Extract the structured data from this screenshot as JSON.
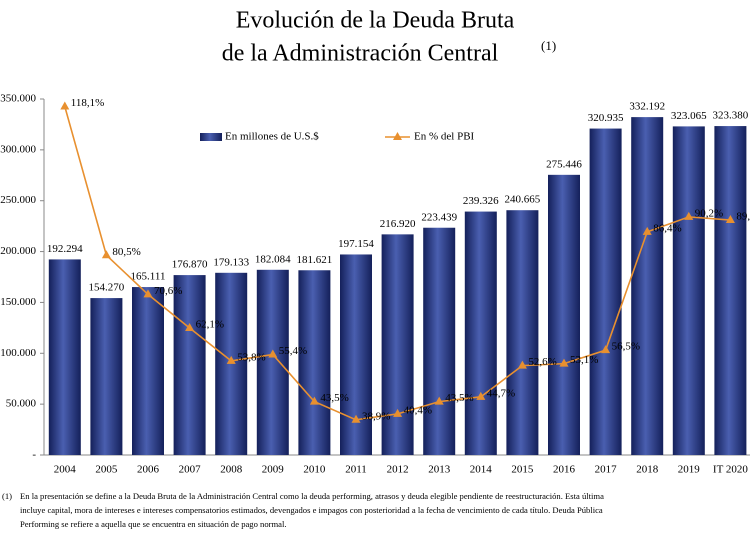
{
  "chart_data": {
    "type": "bar",
    "title_line1": "Evolución de la Deuda Bruta",
    "title_line2": "de la Administración Central",
    "title_note": "(1)",
    "categories": [
      "2004",
      "2005",
      "2006",
      "2007",
      "2008",
      "2009",
      "2010",
      "2011",
      "2012",
      "2013",
      "2014",
      "2015",
      "2016",
      "2017",
      "2018",
      "2019",
      "IT 2020"
    ],
    "series": [
      {
        "name": "En millones de U.S.$",
        "type": "bar",
        "color": "#1f2f78",
        "values": [
          192294,
          154270,
          165111,
          176870,
          179133,
          182084,
          181621,
          197154,
          216920,
          223439,
          239326,
          240665,
          275446,
          320935,
          332192,
          323065,
          323380
        ],
        "value_labels": [
          "192.294",
          "154.270",
          "165.111",
          "176.870",
          "179.133",
          "182.084",
          "181.621",
          "197.154",
          "216.920",
          "223.439",
          "239.326",
          "240.665",
          "275.446",
          "320.935",
          "332.192",
          "323.065",
          "323.380"
        ]
      },
      {
        "name": "En % del PBI",
        "type": "line",
        "axis": "y2",
        "color": "#e8902f",
        "values": [
          118.1,
          80.5,
          70.6,
          62.1,
          53.8,
          55.4,
          43.5,
          38.9,
          40.4,
          43.5,
          44.7,
          52.6,
          53.1,
          56.5,
          86.4,
          90.2,
          89.4
        ],
        "value_labels": [
          "118,1%",
          "80,5%",
          "70,6%",
          "62,1%",
          "53,8%",
          "55,4%",
          "43,5%",
          "38,9%",
          "40,4%",
          "43,5%",
          "44,7%",
          "52,6%",
          "53,1%",
          "56,5%",
          "86,4%",
          "90,2%",
          "89,4%"
        ]
      }
    ],
    "ylim": [
      0,
      350000
    ],
    "yticks": [
      {
        "value": 0,
        "label": "-"
      },
      {
        "value": 50000,
        "label": "50.000"
      },
      {
        "value": 100000,
        "label": "100.000"
      },
      {
        "value": 150000,
        "label": "150.000"
      },
      {
        "value": 200000,
        "label": "200.000"
      },
      {
        "value": 250000,
        "label": "250.000"
      },
      {
        "value": 300000,
        "label": "300.000"
      },
      {
        "value": 350000,
        "label": "350.000"
      }
    ],
    "y2lim": [
      30,
      120
    ],
    "grid": false,
    "footnote_marker": "(1)",
    "footnote_lines": [
      "En la presentación se define a la Deuda Bruta de la Administración Central como la deuda performing, atrasos y deuda elegible pendiente de reestructuración. Esta última",
      "incluye capital, mora de intereses e intereses compensatorios estimados, devengados e impagos con posterioridad a la fecha de vencimiento de cada título. Deuda Pública",
      "Performing se refiere a aquella que se encuentra en situación de pago normal."
    ]
  }
}
